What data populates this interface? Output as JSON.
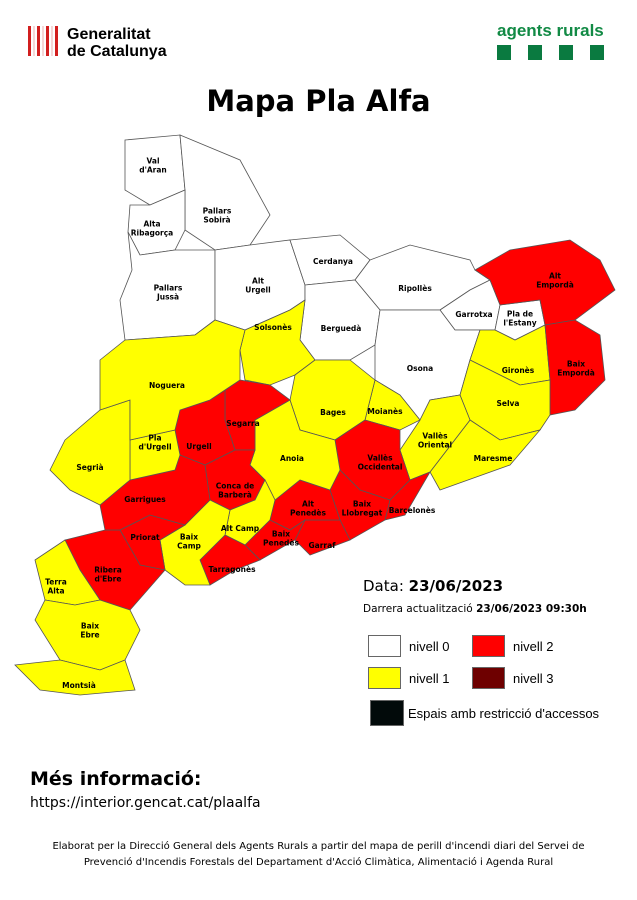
{
  "header": {
    "generalitat_line1": "Generalitat",
    "generalitat_line2": "de Catalunya",
    "agents_rurals": "agents rurals"
  },
  "title": "Mapa Pla Alfa",
  "colors": {
    "nivell_0": "#ffffff",
    "nivell_1": "#ffff00",
    "nivell_2": "#ff0000",
    "nivell_3": "#6e0000",
    "restriccio": "#020a0a",
    "brand_green": "#128a45"
  },
  "regions": [
    {
      "id": "val-daran",
      "lines": [
        "Val",
        "d'Aran"
      ],
      "level": 0
    },
    {
      "id": "pallars-sobira",
      "lines": [
        "Pallars",
        "Sobirà"
      ],
      "level": 0
    },
    {
      "id": "alta-ribagorca",
      "lines": [
        "Alta",
        "Ribagorça"
      ],
      "level": 0
    },
    {
      "id": "pallars-jussa",
      "lines": [
        "Pallars",
        "Jussà"
      ],
      "level": 0
    },
    {
      "id": "alt-urgell",
      "lines": [
        "Alt",
        "Urgell"
      ],
      "level": 0
    },
    {
      "id": "cerdanya",
      "lines": [
        "Cerdanya"
      ],
      "level": 0
    },
    {
      "id": "ripolles",
      "lines": [
        "Ripollès"
      ],
      "level": 0
    },
    {
      "id": "bergueda",
      "lines": [
        "Berguedà"
      ],
      "level": 0
    },
    {
      "id": "garrotxa",
      "lines": [
        "Garrotxa"
      ],
      "level": 0
    },
    {
      "id": "pla-de-lestany",
      "lines": [
        "Pla de",
        "l'Estany"
      ],
      "level": 0
    },
    {
      "id": "alt-emporda",
      "lines": [
        "Alt",
        "Empordà"
      ],
      "level": 2
    },
    {
      "id": "osona",
      "lines": [
        "Osona"
      ],
      "level": 0
    },
    {
      "id": "girones",
      "lines": [
        "Gironès"
      ],
      "level": 1
    },
    {
      "id": "baix-emporda",
      "lines": [
        "Baix",
        "Empordà"
      ],
      "level": 2
    },
    {
      "id": "selva",
      "lines": [
        "Selva"
      ],
      "level": 1
    },
    {
      "id": "maresme",
      "lines": [
        "Maresme"
      ],
      "level": 1
    },
    {
      "id": "valles-oriental",
      "lines": [
        "Vallès",
        "Oriental"
      ],
      "level": 1
    },
    {
      "id": "moianes",
      "lines": [
        "Moianès"
      ],
      "level": 1
    },
    {
      "id": "solsones",
      "lines": [
        "Solsonès"
      ],
      "level": 1
    },
    {
      "id": "bages",
      "lines": [
        "Bages"
      ],
      "level": 1
    },
    {
      "id": "valles-occidental",
      "lines": [
        "Vallès",
        "Occidental"
      ],
      "level": 2
    },
    {
      "id": "barcelones",
      "lines": [
        "Barcelonès"
      ],
      "level": 2
    },
    {
      "id": "baix-llobregat",
      "lines": [
        "Baix",
        "Llobregat"
      ],
      "level": 2
    },
    {
      "id": "garraf",
      "lines": [
        "Garraf"
      ],
      "level": 2
    },
    {
      "id": "alt-penedes",
      "lines": [
        "Alt",
        "Penedès"
      ],
      "level": 2
    },
    {
      "id": "baix-penedes",
      "lines": [
        "Baix",
        "Penedès"
      ],
      "level": 2
    },
    {
      "id": "anoia",
      "lines": [
        "Anoia"
      ],
      "level": 1
    },
    {
      "id": "segarra",
      "lines": [
        "Segarra"
      ],
      "level": 2
    },
    {
      "id": "urgell",
      "lines": [
        "Urgell"
      ],
      "level": 2
    },
    {
      "id": "conca-de-barbera",
      "lines": [
        "Conca de",
        "Barberà"
      ],
      "level": 2
    },
    {
      "id": "alt-camp",
      "lines": [
        "Alt Camp"
      ],
      "level": 1
    },
    {
      "id": "tarragones",
      "lines": [
        "Tarragonès"
      ],
      "level": 2
    },
    {
      "id": "baix-camp",
      "lines": [
        "Baix",
        "Camp"
      ],
      "level": 1
    },
    {
      "id": "priorat",
      "lines": [
        "Priorat"
      ],
      "level": 2
    },
    {
      "id": "ribera-debre",
      "lines": [
        "Ribera",
        "d'Ebre"
      ],
      "level": 2
    },
    {
      "id": "garrigues",
      "lines": [
        "Garrigues"
      ],
      "level": 2
    },
    {
      "id": "pla-durgell",
      "lines": [
        "Pla",
        "d'Urgell"
      ],
      "level": 1
    },
    {
      "id": "segria",
      "lines": [
        "Segrià"
      ],
      "level": 1
    },
    {
      "id": "noguera",
      "lines": [
        "Noguera"
      ],
      "level": 1
    },
    {
      "id": "terra-alta",
      "lines": [
        "Terra",
        "Alta"
      ],
      "level": 1
    },
    {
      "id": "baix-ebre",
      "lines": [
        "Baix",
        "Ebre"
      ],
      "level": 1
    },
    {
      "id": "montsia",
      "lines": [
        "Montsià"
      ],
      "level": 1
    }
  ],
  "info": {
    "date_label": "Data:",
    "date_value": "23/06/2023",
    "updated_label": "Darrera actualització",
    "updated_value": "23/06/2023 09:30h"
  },
  "legend": {
    "nivell_0": "nivell 0",
    "nivell_1": "nivell 1",
    "nivell_2": "nivell 2",
    "nivell_3": "nivell 3",
    "restriccio": "Espais amb restricció d'accessos"
  },
  "more_info": {
    "title": "Més informació:",
    "link": "https://interior.gencat.cat/plaalfa"
  },
  "credits": {
    "line1": "Elaborat per la Direcció General dels Agents Rurals a partir del mapa de perill d'incendi diari del Servei de",
    "line2": "Prevenció d'Incendis Forestals del Departament d'Acció Climàtica, Alimentació i Agenda Rural"
  }
}
